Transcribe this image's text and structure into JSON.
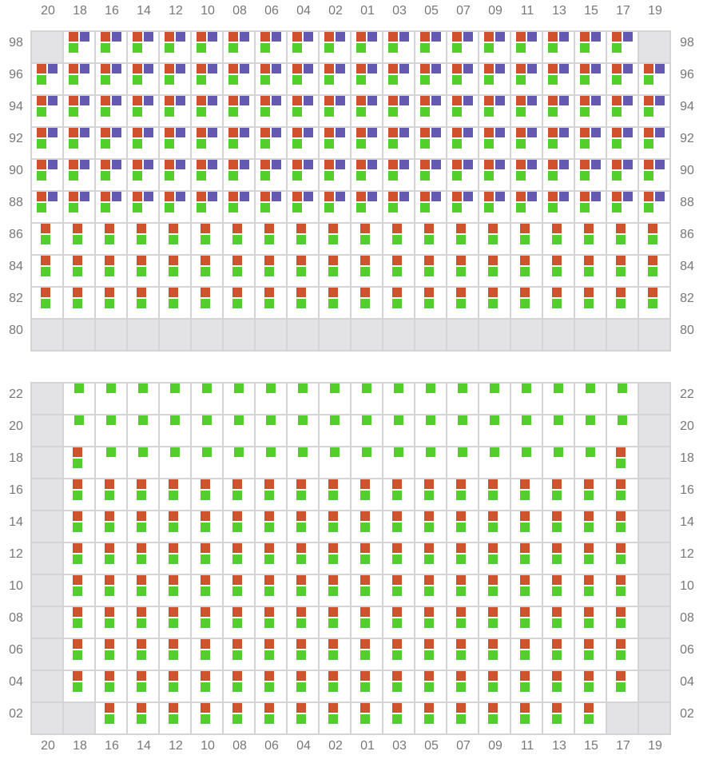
{
  "columns": [
    "20",
    "18",
    "16",
    "14",
    "12",
    "10",
    "08",
    "06",
    "04",
    "02",
    "01",
    "03",
    "05",
    "07",
    "09",
    "11",
    "13",
    "15",
    "17",
    "19"
  ],
  "legend_codes": {
    "X": "unavailable",
    "P": "orange+purple+green",
    "O": "orange+green",
    "G": "green"
  },
  "colors": {
    "orange": "#cf522b",
    "purple": "#6459b0",
    "green": "#52cf2b",
    "unavailable": "#e3e3e6",
    "grid_line": "#d4d4d8",
    "label": "#777777"
  },
  "grids": [
    {
      "show_top_labels": true,
      "show_bottom_labels": false,
      "rows": [
        {
          "label": "98",
          "cells": "XPPPPPPPPPPPPPPPPPPX"
        },
        {
          "label": "96",
          "cells": "PPPPPPPPPPPPPPPPPPPP"
        },
        {
          "label": "94",
          "cells": "PPPPPPPPPPPPPPPPPPPP"
        },
        {
          "label": "92",
          "cells": "PPPPPPPPPPPPPPPPPPPP"
        },
        {
          "label": "90",
          "cells": "PPPPPPPPPPPPPPPPPPPP"
        },
        {
          "label": "88",
          "cells": "PPPPPPPPPPPPPPPPPPPP"
        },
        {
          "label": "86",
          "cells": "OOOOOOOOOOOOOOOOOOOO"
        },
        {
          "label": "84",
          "cells": "OOOOOOOOOOOOOOOOOOOO"
        },
        {
          "label": "82",
          "cells": "OOOOOOOOOOOOOOOOOOOO"
        },
        {
          "label": "80",
          "cells": "XXXXXXXXXXXXXXXXXXXX"
        }
      ]
    },
    {
      "show_top_labels": false,
      "show_bottom_labels": true,
      "rows": [
        {
          "label": "22",
          "cells": "XGGGGGGGGGGGGGGGGGGX"
        },
        {
          "label": "20",
          "cells": "XGGGGGGGGGGGGGGGGGGX"
        },
        {
          "label": "18",
          "cells": "XOGGGGGGGGGGGGGGGGOX"
        },
        {
          "label": "16",
          "cells": "XOOOOOOOOOOOOOOOOOOX"
        },
        {
          "label": "14",
          "cells": "XOOOOOOOOOOOOOOOOOOX"
        },
        {
          "label": "12",
          "cells": "XOOOOOOOOOOOOOOOOOOX"
        },
        {
          "label": "10",
          "cells": "XOOOOOOOOOOOOOOOOOOX"
        },
        {
          "label": "08",
          "cells": "XOOOOOOOOOOOOOOOOOOX"
        },
        {
          "label": "06",
          "cells": "XOOOOOOOOOOOOOOOOOOX"
        },
        {
          "label": "04",
          "cells": "XOOOOOOOOOOOOOOOOOOX"
        },
        {
          "label": "02",
          "cells": "XXOOOOOOOOOOOOOOOOXX"
        }
      ]
    }
  ]
}
